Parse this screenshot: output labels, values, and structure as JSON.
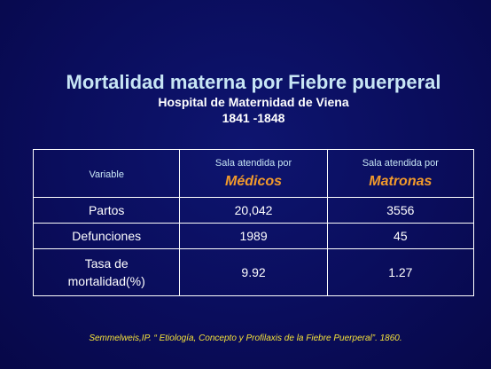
{
  "slide": {
    "title": "Mortalidad materna por Fiebre puerperal",
    "subtitle": "Hospital de Maternidad de Viena",
    "years": "1841 -1848"
  },
  "table": {
    "variable_header": "Variable",
    "col1": {
      "small": "Sala atendida por",
      "big": "Médicos"
    },
    "col2": {
      "small": "Sala atendida por",
      "big": "Matronas"
    },
    "rows": [
      {
        "label": "Partos",
        "medicos": "20,042",
        "matronas": "3556"
      },
      {
        "label": "Defunciones",
        "medicos": "1989",
        "matronas": "45"
      },
      {
        "label_line1": "Tasa de",
        "label_line2": "mortalidad(%)",
        "medicos": "9.92",
        "matronas": "1.27"
      }
    ]
  },
  "citation": "Semmelweis,IP. “ Etiología, Concepto y Profilaxis de la Fiebre Puerperal”. 1860.",
  "colors": {
    "background": "#0a0d5c",
    "title": "#c8e6f5",
    "accent": "#f29a2b",
    "citation": "#f5e23a"
  }
}
